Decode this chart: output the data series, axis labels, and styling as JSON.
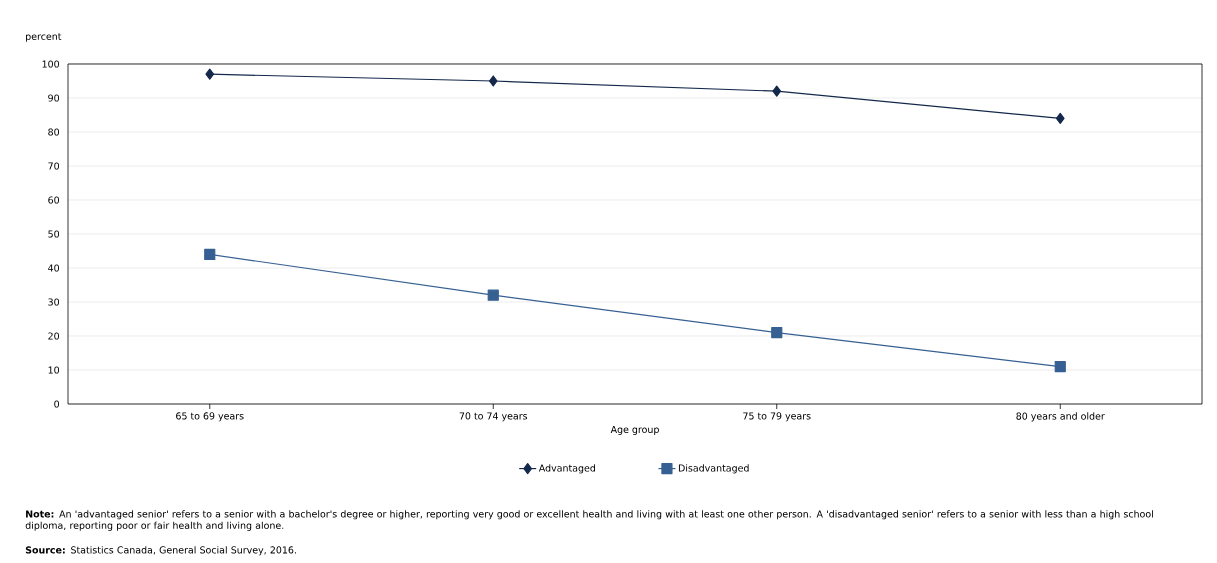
{
  "chart_data": {
    "type": "line",
    "ylabel": "percent",
    "xlabel": "Age group",
    "categories": [
      "65 to 69 years",
      "70 to 74 years",
      "75 to 79 years",
      "80 years and older"
    ],
    "series": [
      {
        "name": "Advantaged",
        "color": "#14284b",
        "marker": "diamond",
        "values": [
          97,
          95,
          92,
          84
        ]
      },
      {
        "name": "Disadvantaged",
        "color": "#366092",
        "marker": "square",
        "values": [
          44,
          32,
          21,
          11
        ]
      }
    ],
    "ylim": [
      0,
      100
    ],
    "yticks": [
      0,
      10,
      20,
      30,
      40,
      50,
      60,
      70,
      80,
      90,
      100
    ],
    "grid": "y",
    "legend": "bottom",
    "line_style": "solid",
    "annotations": [
      "**Note:** An 'advantaged senior' refers to a senior with a bachelor's degree or higher, reporting very good or excellent health and living with at least one other person. A 'disadvantaged senior' refers to a senior with less than a high school diploma, reporting poor or fair health and living alone.",
      "**Source:** Statistics Canada, General Social Survey, 2016."
    ]
  }
}
